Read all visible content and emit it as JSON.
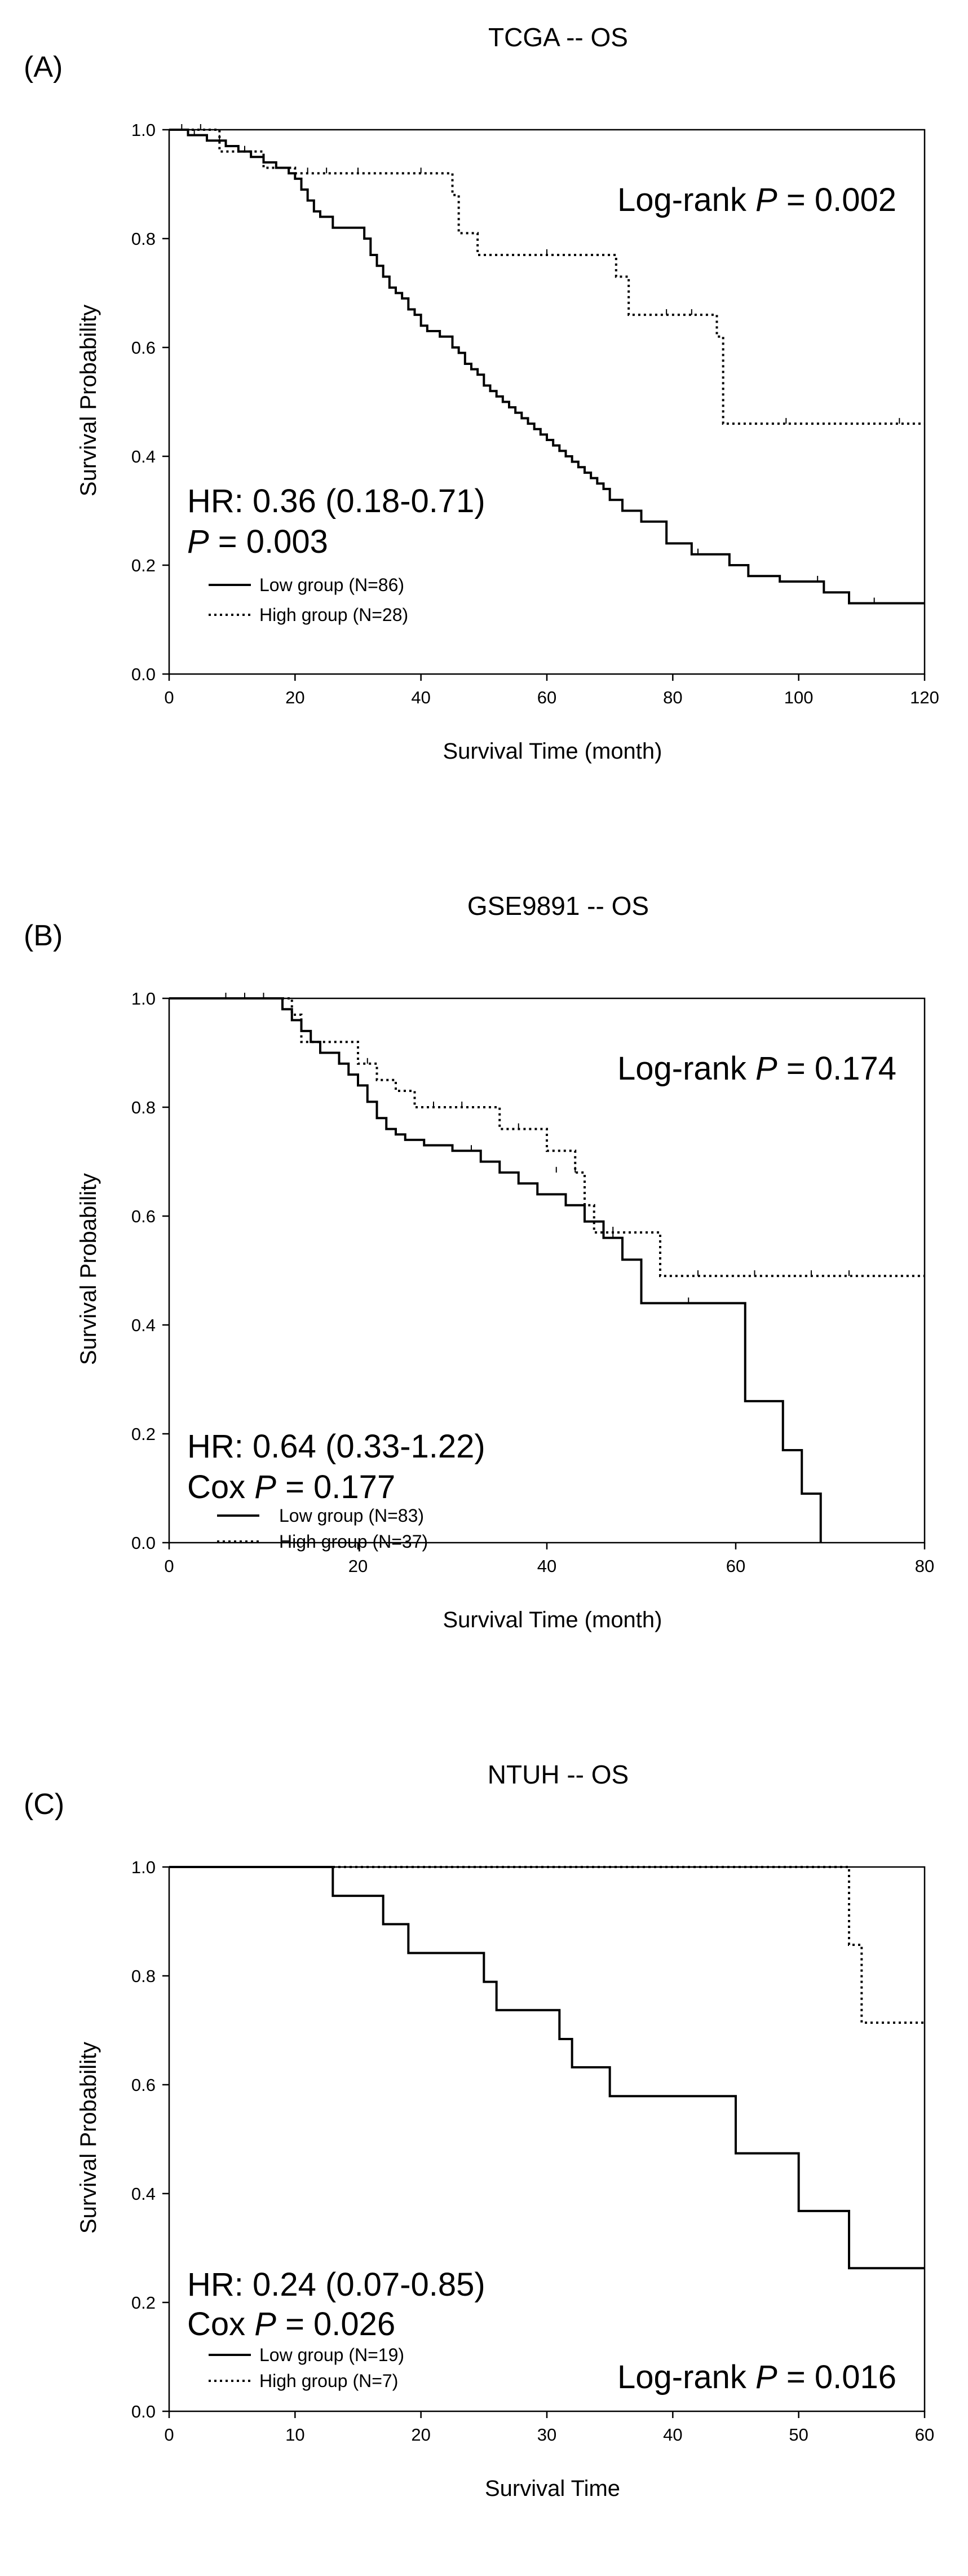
{
  "chart_data": [
    {
      "type": "line",
      "label": "(A)",
      "title": "TCGA -- OS",
      "xlabel": "Survival Time (month)",
      "ylabel": "Survival Probability",
      "xlim": [
        0,
        120
      ],
      "ylim": [
        0,
        1.0
      ],
      "xticks": [
        "0",
        "20",
        "40",
        "60",
        "80",
        "100",
        "120"
      ],
      "yticks": [
        "0.0",
        "0.2",
        "0.4",
        "0.6",
        "0.8",
        "1.0"
      ],
      "logrank_text": "Log-rank ",
      "logrank_p_letter": "P",
      "logrank_value": " = 0.002",
      "hr_text": "HR: 0.36 (0.18-0.71)",
      "p_prefix": "",
      "p_letter": "P",
      "p_value": " = 0.003",
      "legend_position": "bottom-left",
      "series": [
        {
          "name": "Low group (N=86)",
          "style": "solid",
          "x": [
            0,
            3,
            6,
            9,
            11,
            13,
            15,
            17,
            19,
            20,
            21,
            22,
            23,
            24,
            26,
            29,
            31,
            32,
            33,
            34,
            35,
            36,
            37,
            38,
            39,
            40,
            41,
            43,
            45,
            46,
            47,
            48,
            49,
            50,
            51,
            52,
            53,
            54,
            55,
            56,
            57,
            58,
            59,
            60,
            61,
            62,
            63,
            64,
            65,
            66,
            67,
            68,
            69,
            70,
            72,
            75,
            79,
            83,
            89,
            92,
            97,
            104,
            108,
            120
          ],
          "y": [
            1.0,
            0.99,
            0.98,
            0.97,
            0.96,
            0.95,
            0.94,
            0.93,
            0.92,
            0.91,
            0.89,
            0.87,
            0.85,
            0.84,
            0.82,
            0.82,
            0.8,
            0.77,
            0.75,
            0.73,
            0.71,
            0.7,
            0.69,
            0.67,
            0.66,
            0.64,
            0.63,
            0.62,
            0.6,
            0.59,
            0.57,
            0.56,
            0.55,
            0.53,
            0.52,
            0.51,
            0.5,
            0.49,
            0.48,
            0.47,
            0.46,
            0.45,
            0.44,
            0.43,
            0.42,
            0.41,
            0.4,
            0.39,
            0.38,
            0.37,
            0.36,
            0.35,
            0.34,
            0.32,
            0.3,
            0.28,
            0.24,
            0.22,
            0.2,
            0.18,
            0.17,
            0.15,
            0.13,
            0.13
          ],
          "censored": [
            [
              4,
              0.99
            ],
            [
              8,
              0.98
            ],
            [
              12,
              0.96
            ],
            [
              46,
              0.59
            ],
            [
              55,
              0.48
            ],
            [
              60,
              0.43
            ],
            [
              67,
              0.36
            ],
            [
              84,
              0.22
            ],
            [
              103,
              0.17
            ],
            [
              112,
              0.13
            ]
          ]
        },
        {
          "name": "High group (N=28)",
          "style": "dotted",
          "x": [
            0,
            8,
            12,
            15,
            20,
            45,
            46,
            49,
            69,
            71,
            73,
            85,
            87,
            88,
            120
          ],
          "y": [
            1.0,
            0.96,
            0.96,
            0.93,
            0.92,
            0.88,
            0.81,
            0.77,
            0.77,
            0.73,
            0.66,
            0.66,
            0.62,
            0.46,
            0.46
          ],
          "censored": [
            [
              2,
              1.0
            ],
            [
              5,
              1.0
            ],
            [
              11,
              0.96
            ],
            [
              22,
              0.92
            ],
            [
              25,
              0.92
            ],
            [
              30,
              0.92
            ],
            [
              40,
              0.92
            ],
            [
              60,
              0.77
            ],
            [
              79,
              0.66
            ],
            [
              83,
              0.66
            ],
            [
              98,
              0.46
            ],
            [
              116,
              0.46
            ]
          ]
        }
      ]
    },
    {
      "type": "line",
      "label": "(B)",
      "title": "GSE9891 -- OS",
      "xlabel": "Survival Time (month)",
      "ylabel": "Survival Probability",
      "xlim": [
        0,
        80
      ],
      "ylim": [
        0,
        1.0
      ],
      "xticks": [
        "0",
        "20",
        "40",
        "60",
        "80"
      ],
      "yticks": [
        "0.0",
        "0.2",
        "0.4",
        "0.6",
        "0.8",
        "1.0"
      ],
      "logrank_text": "Log-rank ",
      "logrank_p_letter": "P",
      "logrank_value": " = 0.174",
      "hr_text": "HR: 0.64 (0.33-1.22)",
      "p_prefix": "Cox ",
      "p_letter": "P",
      "p_value": " = 0.177",
      "legend_position": "bottom-left",
      "series": [
        {
          "name": "Low group (N=83)",
          "style": "solid",
          "x": [
            0,
            12,
            13,
            14,
            15,
            16,
            18,
            19,
            20,
            21,
            22,
            23,
            24,
            25,
            27,
            30,
            33,
            35,
            37,
            39,
            42,
            44,
            46,
            48,
            50,
            55,
            61,
            65,
            67,
            69
          ],
          "y": [
            1.0,
            0.98,
            0.96,
            0.94,
            0.92,
            0.9,
            0.88,
            0.86,
            0.84,
            0.81,
            0.78,
            0.76,
            0.75,
            0.74,
            0.73,
            0.72,
            0.7,
            0.68,
            0.66,
            0.64,
            0.62,
            0.59,
            0.56,
            0.52,
            0.44,
            0.44,
            0.26,
            0.17,
            0.09,
            0.0
          ],
          "censored": [
            [
              24,
              0.75
            ],
            [
              27,
              0.73
            ],
            [
              32,
              0.72
            ],
            [
              39,
              0.64
            ],
            [
              47,
              0.56
            ],
            [
              55,
              0.44
            ]
          ]
        },
        {
          "name": "High group (N=37)",
          "style": "dotted",
          "x": [
            0,
            13,
            14,
            18,
            20,
            22,
            24,
            26,
            34,
            35,
            40,
            43,
            44,
            45,
            46,
            52,
            80
          ],
          "y": [
            1.0,
            0.97,
            0.92,
            0.92,
            0.88,
            0.85,
            0.83,
            0.8,
            0.8,
            0.76,
            0.72,
            0.68,
            0.62,
            0.57,
            0.57,
            0.49,
            0.49
          ],
          "censored": [
            [
              6,
              1.0
            ],
            [
              8,
              1.0
            ],
            [
              10,
              1.0
            ],
            [
              21,
              0.88
            ],
            [
              28,
              0.8
            ],
            [
              31,
              0.8
            ],
            [
              37,
              0.76
            ],
            [
              41,
              0.68
            ],
            [
              43,
              0.68
            ],
            [
              47,
              0.57
            ],
            [
              56,
              0.49
            ],
            [
              62,
              0.49
            ],
            [
              68,
              0.49
            ],
            [
              72,
              0.49
            ]
          ]
        }
      ]
    },
    {
      "type": "line",
      "label": "(C)",
      "title": "NTUH -- OS",
      "xlabel": "Survival Time",
      "ylabel": "Survival Probability",
      "xlim": [
        0,
        60
      ],
      "ylim": [
        0,
        1.0
      ],
      "xticks": [
        "0",
        "10",
        "20",
        "30",
        "40",
        "50",
        "60"
      ],
      "yticks": [
        "0.0",
        "0.2",
        "0.4",
        "0.6",
        "0.8",
        "1.0"
      ],
      "logrank_text": "Log-rank ",
      "logrank_p_letter": "P",
      "logrank_value": " = 0.016",
      "hr_text": "HR: 0.24 (0.07-0.85)",
      "p_prefix": "Cox ",
      "p_letter": "P",
      "p_value": " = 0.026",
      "legend_position": "bottom-left",
      "series": [
        {
          "name": "Low group (N=19)",
          "style": "solid",
          "x": [
            0,
            13,
            17,
            19,
            25,
            26,
            31,
            32,
            35,
            45,
            50,
            54,
            60
          ],
          "y": [
            1.0,
            0.947,
            0.895,
            0.842,
            0.789,
            0.737,
            0.684,
            0.632,
            0.579,
            0.474,
            0.368,
            0.263,
            0.263
          ],
          "censored": []
        },
        {
          "name": "High group (N=7)",
          "style": "dotted",
          "x": [
            0,
            54,
            55,
            60
          ],
          "y": [
            1.0,
            0.857,
            0.714,
            0.714
          ],
          "censored": []
        }
      ]
    }
  ]
}
